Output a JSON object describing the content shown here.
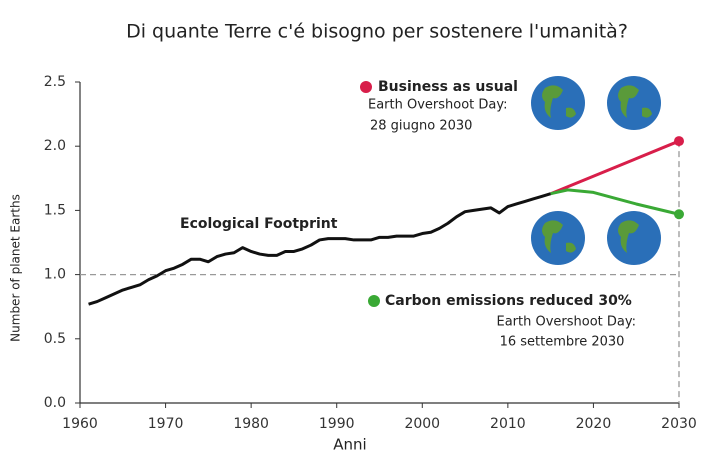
{
  "chart_data": {
    "type": "line",
    "title": "Di quante Terre c'é bisogno per sostenere l'umanità?",
    "x_label": "Anni",
    "y_label": "Number of planet Earths",
    "xlim": [
      1960,
      2030
    ],
    "xticks": [
      1960,
      1970,
      1980,
      1990,
      2000,
      2010,
      2020,
      2030
    ],
    "ylim": [
      0,
      2.5
    ],
    "yticks": [
      {
        "value": 0,
        "label": "0.0"
      },
      0.5,
      {
        "value": 1,
        "label": "1.0"
      },
      1.5,
      {
        "value": 2,
        "label": "2.0"
      },
      2.5
    ],
    "reference_line": 1,
    "series": [
      {
        "name": "Ecological Footprint",
        "color": "#111111",
        "x": [
          1961,
          1962,
          1963,
          1964,
          1965,
          1966,
          1967,
          1968,
          1969,
          1970,
          1971,
          1972,
          1973,
          1974,
          1975,
          1976,
          1977,
          1978,
          1979,
          1980,
          1981,
          1982,
          1983,
          1984,
          1985,
          1986,
          1987,
          1988,
          1989,
          1990,
          1991,
          1992,
          1993,
          1994,
          1995,
          1996,
          1997,
          1998,
          1999,
          2000,
          2001,
          2002,
          2003,
          2004,
          2005,
          2006,
          2007,
          2008,
          2009,
          2010,
          2011,
          2012,
          2013,
          2014,
          2015
        ],
        "values": [
          0.77,
          0.79,
          0.82,
          0.85,
          0.88,
          0.9,
          0.92,
          0.96,
          0.99,
          1.03,
          1.05,
          1.08,
          1.12,
          1.12,
          1.1,
          1.14,
          1.16,
          1.17,
          1.21,
          1.18,
          1.16,
          1.15,
          1.15,
          1.18,
          1.18,
          1.2,
          1.23,
          1.27,
          1.28,
          1.28,
          1.28,
          1.27,
          1.27,
          1.27,
          1.29,
          1.29,
          1.3,
          1.3,
          1.3,
          1.32,
          1.33,
          1.36,
          1.4,
          1.45,
          1.49,
          1.5,
          1.51,
          1.52,
          1.48,
          1.53,
          1.55,
          1.57,
          1.59,
          1.61,
          1.63
        ]
      },
      {
        "name": "Business as usual",
        "color": "#d81e4a",
        "x": [
          2015,
          2030
        ],
        "values": [
          1.63,
          2.04
        ],
        "annotations": [
          "Earth Overshoot Day:",
          "28 giugno 2030"
        ]
      },
      {
        "name": "Carbon emissions reduced 30%",
        "color": "#3aa935",
        "x": [
          2015,
          2017,
          2020,
          2025,
          2030
        ],
        "values": [
          1.63,
          1.66,
          1.64,
          1.55,
          1.47
        ],
        "annotations": [
          "Earth Overshoot Day:",
          "16 settembre 2030"
        ]
      }
    ]
  }
}
